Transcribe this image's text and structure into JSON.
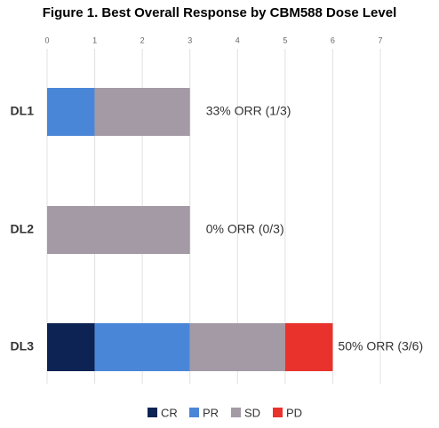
{
  "chart_data": {
    "type": "stacked-barh",
    "title": "Figure 1. Best Overall Response by CBM588 Dose Level",
    "categories": [
      "DL1",
      "DL2",
      "DL3"
    ],
    "series": [
      {
        "name": "CR",
        "color": "#0c2354",
        "values": [
          0,
          0,
          1
        ]
      },
      {
        "name": "PR",
        "color": "#4a86d8",
        "values": [
          1,
          0,
          2
        ]
      },
      {
        "name": "SD",
        "color": "#a39aa6",
        "values": [
          2,
          3,
          2
        ]
      },
      {
        "name": "PD",
        "color": "#e8322b",
        "values": [
          0,
          0,
          1
        ]
      }
    ],
    "annotations": [
      "33% ORR (1/3)",
      "0% ORR (0/3)",
      "50% ORR (3/6)"
    ],
    "xlim": [
      0,
      7
    ],
    "xticks": [
      0,
      1,
      2,
      3,
      4,
      5,
      6,
      7
    ],
    "grid": true,
    "legend": "bottom"
  }
}
